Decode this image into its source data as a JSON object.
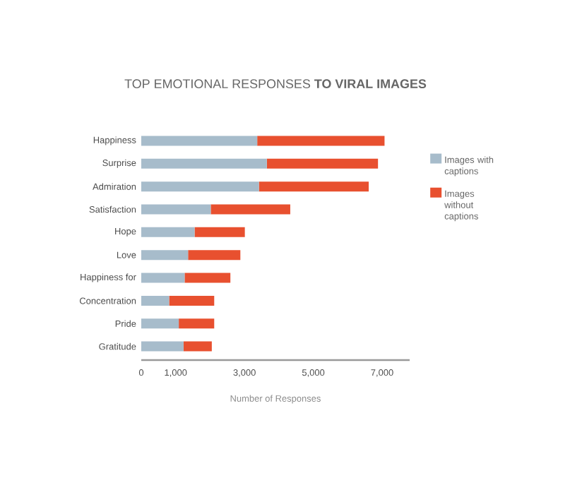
{
  "chart_data": {
    "type": "bar",
    "orientation": "horizontal",
    "stacked": true,
    "title": "TOP EMOTIONAL RESPONSES **TO VIRAL IMAGES**",
    "xlabel": "Number of Responses",
    "categories": [
      "Happiness",
      "Surprise",
      "Admiration",
      "Satisfaction",
      "Hope",
      "Love",
      "Happiness for",
      "Concentration",
      "Pride",
      "Gratitude"
    ],
    "series": [
      {
        "name": "Images with captions",
        "color": "#a7bccb",
        "values": [
          3370,
          3650,
          3420,
          2020,
          1550,
          1360,
          1260,
          810,
          1090,
          1230
        ]
      },
      {
        "name": "Images without captions",
        "color": "#e8502f",
        "values": [
          3700,
          3230,
          3190,
          2310,
          1460,
          1520,
          1330,
          1310,
          1030,
          820
        ]
      }
    ],
    "xlim": [
      0,
      7800
    ],
    "xticks": [
      0,
      {
        "value": 1000,
        "label": "1,000"
      },
      {
        "value": 3000,
        "label": "3,000"
      },
      {
        "value": 5000,
        "label": "5,000"
      },
      {
        "value": 7000,
        "label": "7,000"
      }
    ],
    "legend": "right"
  }
}
